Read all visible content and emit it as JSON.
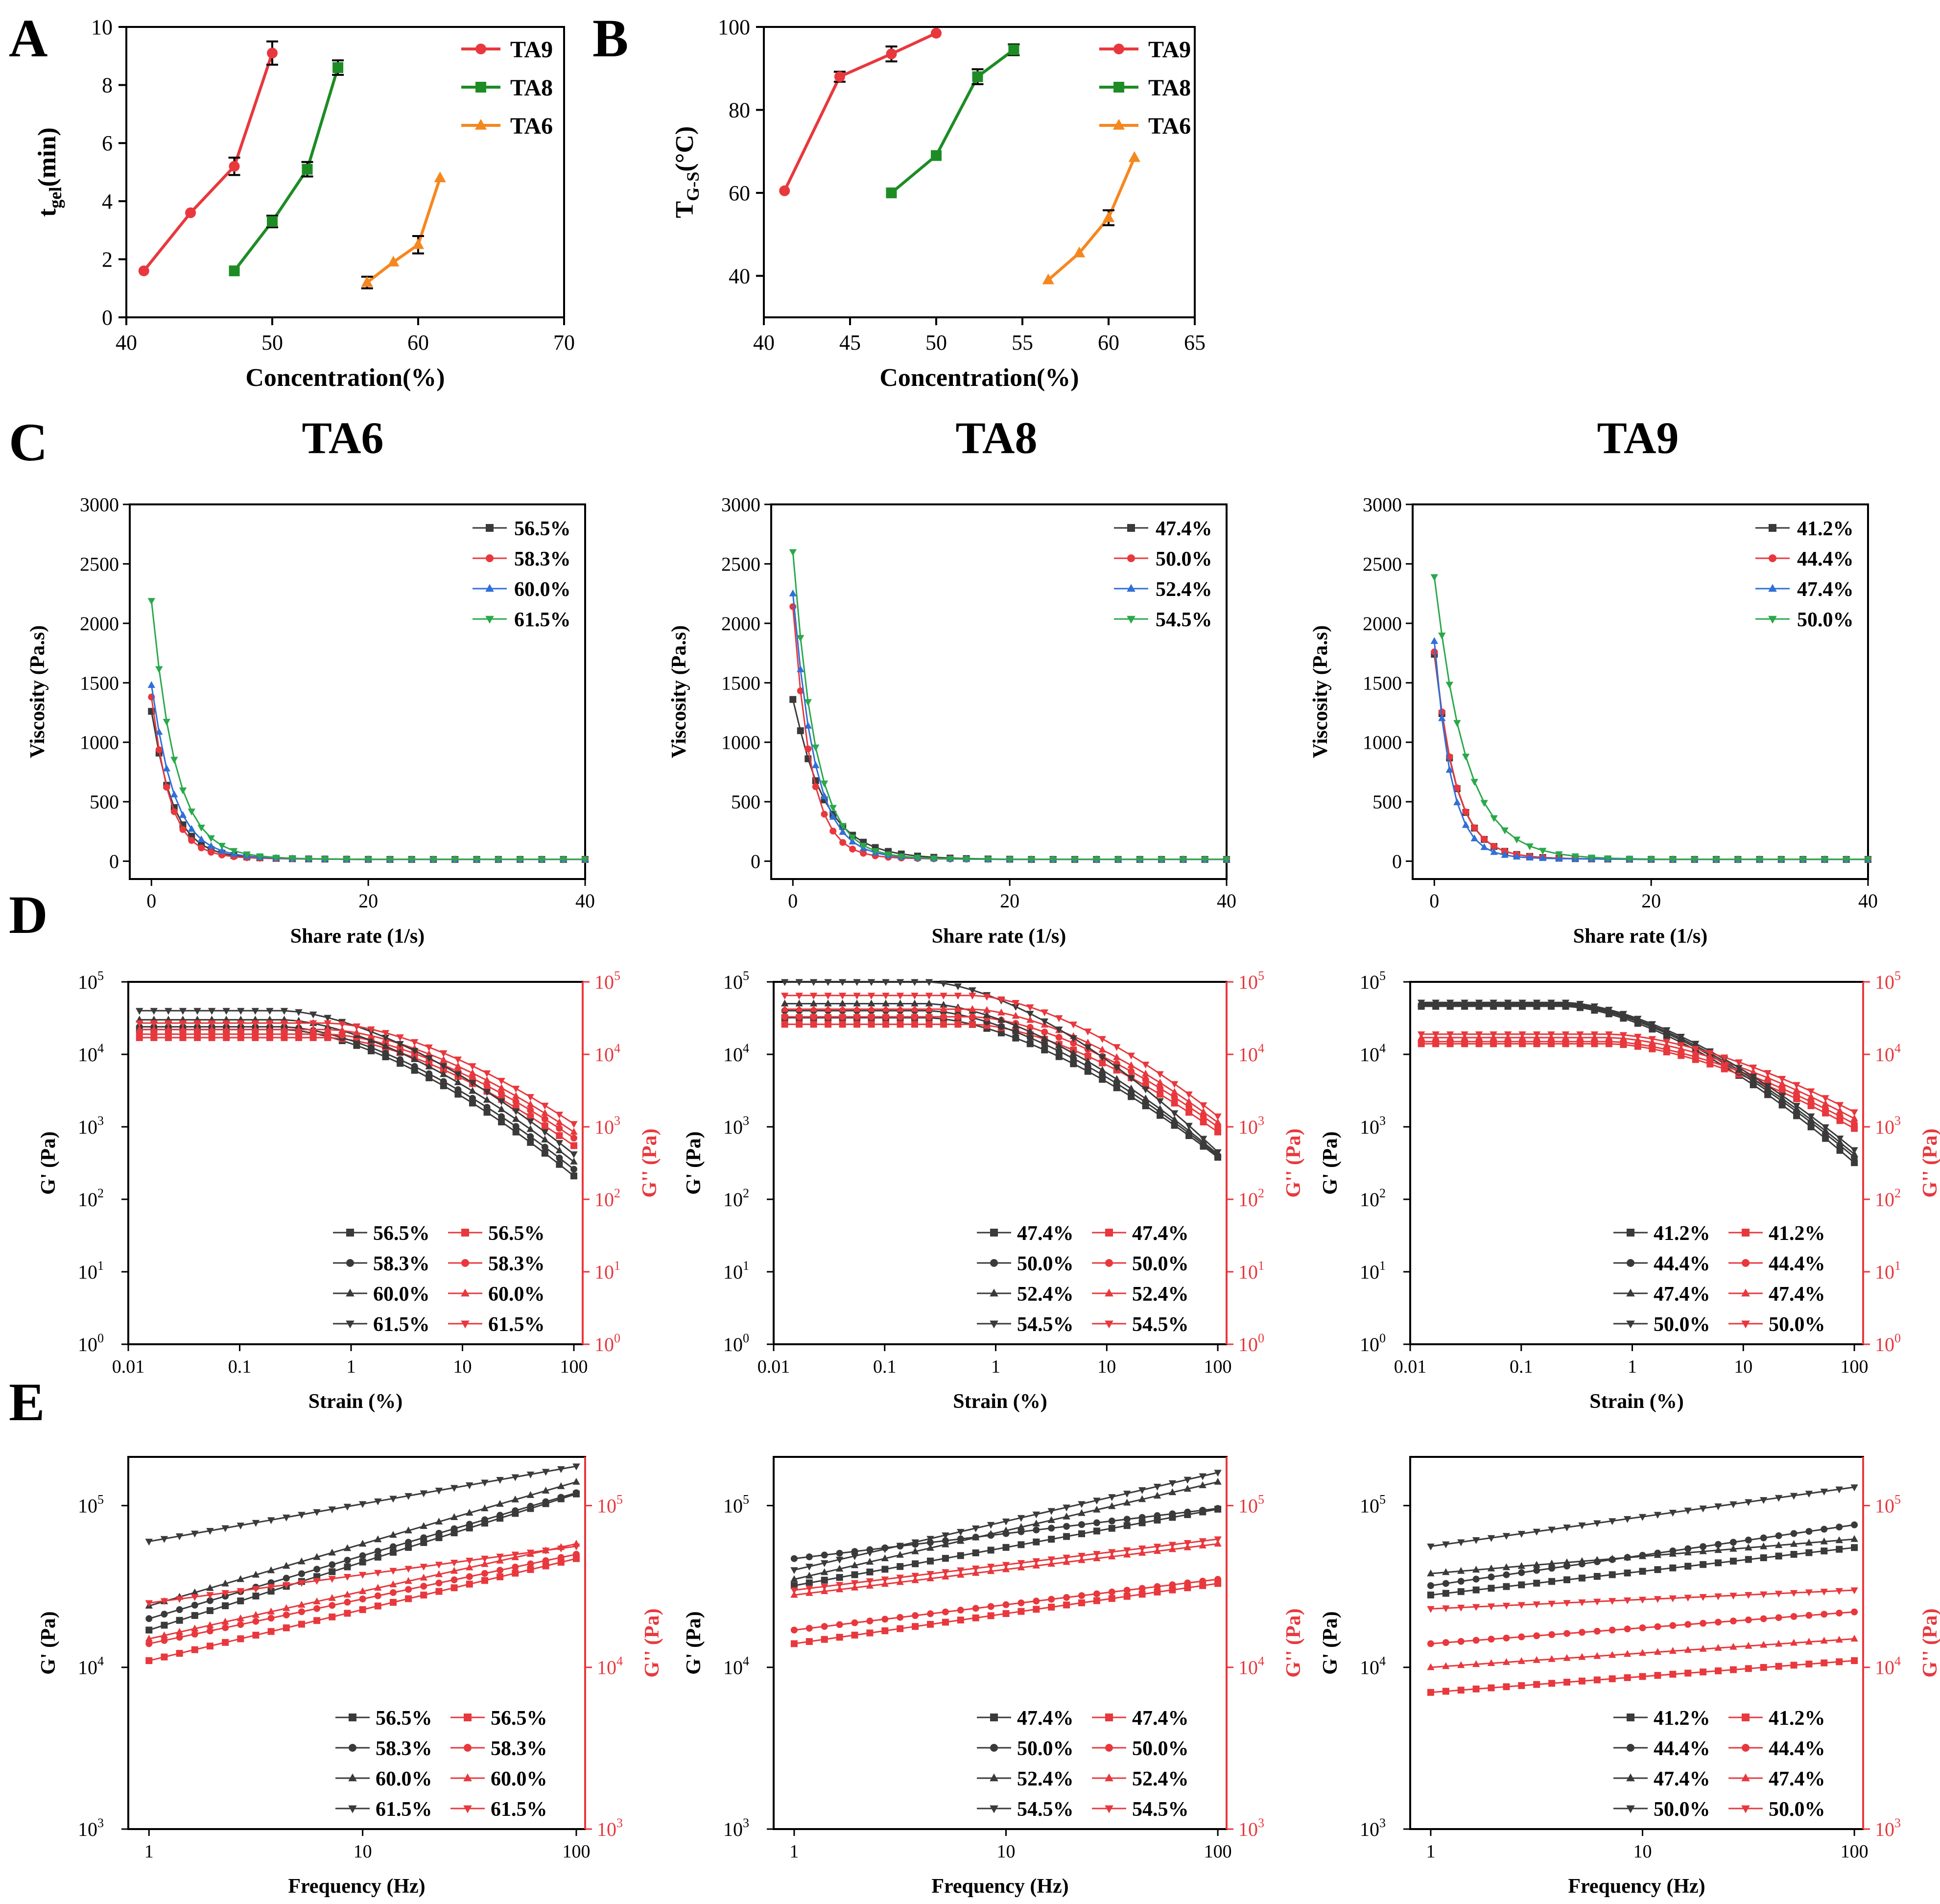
{
  "figure": {
    "panel_labels": [
      "A",
      "B",
      "C",
      "D",
      "E"
    ],
    "column_titles": [
      "TA6",
      "TA8",
      "TA9"
    ]
  },
  "colors": {
    "red": "#e8383d",
    "green": "#1e8c24",
    "orange": "#f5871f",
    "black": "#3a3a3a",
    "blue": "#2f6fd8",
    "teal_green": "#2aa84a",
    "red_axis": "#e8383d"
  },
  "chart_data": [
    {
      "id": "A",
      "type": "line",
      "xlabel": "Concentration(%)",
      "ylabel": "t_gel(min)",
      "ylabel_main": "t",
      "ylabel_sub": "gel",
      "ylabel_tail": "(min)",
      "xlim": [
        40,
        70
      ],
      "ylim": [
        0,
        10
      ],
      "xticks": [
        40,
        50,
        60,
        70
      ],
      "yticks": [
        0,
        2,
        4,
        6,
        8,
        10
      ],
      "series": [
        {
          "name": "TA9",
          "marker": "circle",
          "color": "#e8383d",
          "x": [
            41.2,
            44.4,
            47.4,
            50.0
          ],
          "y": [
            1.6,
            3.6,
            5.2,
            9.1
          ],
          "err": [
            0,
            0,
            0.3,
            0.4
          ]
        },
        {
          "name": "TA8",
          "marker": "square",
          "color": "#1e8c24",
          "x": [
            47.4,
            50.0,
            52.4,
            54.5
          ],
          "y": [
            1.6,
            3.3,
            5.1,
            8.6
          ],
          "err": [
            0,
            0.2,
            0.25,
            0.25
          ]
        },
        {
          "name": "TA6",
          "marker": "triangle",
          "color": "#f5871f",
          "x": [
            56.5,
            58.3,
            60.0,
            61.5
          ],
          "y": [
            1.2,
            1.9,
            2.5,
            4.8
          ],
          "err": [
            0.2,
            0,
            0.3,
            0
          ]
        }
      ]
    },
    {
      "id": "B",
      "type": "line",
      "xlabel": "Concentration(%)",
      "ylabel": "T_G-S(°C)",
      "ylabel_main": "T",
      "ylabel_sub": "G-S",
      "ylabel_tail": "(°C)",
      "xlim": [
        40,
        65
      ],
      "ylim": [
        30,
        100
      ],
      "xticks": [
        40,
        45,
        50,
        55,
        60,
        65
      ],
      "yticks": [
        40,
        60,
        80,
        100
      ],
      "series": [
        {
          "name": "TA9",
          "marker": "circle",
          "color": "#e8383d",
          "x": [
            41.2,
            44.4,
            47.4,
            50.0
          ],
          "y": [
            60.5,
            88.0,
            93.5,
            98.5
          ],
          "err": [
            0,
            1.2,
            1.8,
            0
          ]
        },
        {
          "name": "TA8",
          "marker": "square",
          "color": "#1e8c24",
          "x": [
            47.4,
            50.0,
            52.4,
            54.5
          ],
          "y": [
            60.0,
            69.0,
            88.0,
            94.5
          ],
          "err": [
            0,
            0,
            1.8,
            1.3
          ]
        },
        {
          "name": "TA6",
          "marker": "triangle",
          "color": "#f5871f",
          "x": [
            56.5,
            58.3,
            60.0,
            61.5
          ],
          "y": [
            39.0,
            45.5,
            54.0,
            68.5
          ],
          "err": [
            0,
            0,
            1.8,
            0
          ]
        }
      ]
    },
    {
      "id": "C1",
      "type": "line",
      "title": "TA6",
      "xlabel": "Share rate (1/s)",
      "ylabel": "Viscosity (Pa.s)",
      "xlim": [
        -2,
        40
      ],
      "ylim": [
        -150,
        3000
      ],
      "xticks": [
        0,
        20,
        40
      ],
      "yticks": [
        0,
        500,
        1000,
        1500,
        2000,
        2500,
        3000
      ],
      "legend": [
        "56.5%",
        "58.3%",
        "60.0%",
        "61.5%"
      ],
      "peaks": [
        1260,
        1380,
        1480,
        2190
      ],
      "k": [
        0.62,
        0.72,
        0.58,
        0.55
      ]
    },
    {
      "id": "C2",
      "type": "line",
      "title": "TA8",
      "xlabel": "Share  rate (1/s)",
      "ylabel": "Viscosity (Pa.s)",
      "xlim": [
        -2,
        40
      ],
      "ylim": [
        -150,
        3000
      ],
      "xticks": [
        0,
        20,
        40
      ],
      "yticks": [
        0,
        500,
        1000,
        1500,
        2000,
        2500,
        3000
      ],
      "legend": [
        "47.4%",
        "50.0%",
        "52.4%",
        "54.5%"
      ],
      "peaks": [
        1360,
        2140,
        2250,
        2600
      ],
      "k": [
        0.42,
        0.72,
        0.6,
        0.58
      ]
    },
    {
      "id": "C3",
      "type": "line",
      "title": "TA9",
      "xlabel": "Share  rate (1/s)",
      "ylabel": "Viscosity (Pa.s)",
      "xlim": [
        -2,
        40
      ],
      "ylim": [
        -150,
        3000
      ],
      "xticks": [
        0,
        20,
        40
      ],
      "yticks": [
        0,
        500,
        1000,
        1500,
        2000,
        2500,
        3000
      ],
      "legend": [
        "41.2%",
        "44.4%",
        "47.4%",
        "50.0%"
      ],
      "peaks": [
        1740,
        1760,
        1850,
        2390
      ],
      "k": [
        0.62,
        0.62,
        0.78,
        0.42
      ]
    },
    {
      "id": "D1",
      "type": "line",
      "scale": "log",
      "xlabel": "Strain (%)",
      "ylabel": "G' (Pa)",
      "ylabel2": "G'' (Pa)",
      "xlim": [
        0.01,
        120
      ],
      "ylim": [
        1,
        100000
      ],
      "xticks": [
        "0.01",
        "0.1",
        "1",
        "10",
        "100"
      ],
      "legend": [
        "56.5%",
        "58.3%",
        "60.0%",
        "61.5%"
      ],
      "gp_plateau": [
        22000,
        24000,
        30000,
        40000
      ],
      "gp_end": [
        210,
        260,
        330,
        420
      ],
      "gpp_plateau": [
        17000,
        19000,
        22000,
        27000
      ],
      "gpp_end": [
        550,
        700,
        850,
        1100
      ]
    },
    {
      "id": "D2",
      "type": "line",
      "scale": "log",
      "xlabel": "Strain (%)",
      "ylabel": "G' (Pa)",
      "ylabel2": "G'' (Pa)",
      "xlim": [
        0.01,
        120
      ],
      "ylim": [
        1,
        100000
      ],
      "xticks": [
        "0.01",
        "0.1",
        "1",
        "10",
        "100"
      ],
      "legend": [
        "47.4%",
        "50.0%",
        "52.4%",
        "54.5%"
      ],
      "gp_plateau": [
        32000,
        40000,
        50000,
        100000
      ],
      "gp_end": [
        380,
        400,
        420,
        450
      ],
      "gpp_plateau": [
        26000,
        33000,
        42000,
        65000
      ],
      "gpp_end": [
        850,
        1000,
        1150,
        1400
      ]
    },
    {
      "id": "D3",
      "type": "line",
      "scale": "log",
      "xlabel": "Strain (%)",
      "ylabel": "G' (Pa)",
      "ylabel2": "G'' (Pa)",
      "xlim": [
        0.01,
        120
      ],
      "ylim": [
        1,
        100000
      ],
      "xticks": [
        "0.01",
        "0.1",
        "1",
        "10",
        "100"
      ],
      "legend": [
        "41.2%",
        "44.4%",
        "47.4%",
        "50.0%"
      ],
      "gp_plateau": [
        46000,
        48000,
        50000,
        52000
      ],
      "gp_end": [
        320,
        380,
        420,
        480
      ],
      "gpp_plateau": [
        14000,
        15000,
        17000,
        19000
      ],
      "gpp_end": [
        950,
        1100,
        1300,
        1600
      ]
    },
    {
      "id": "E1",
      "type": "line",
      "scale": "log",
      "xlabel": "Frequency (Hz)",
      "ylabel": "G' (Pa)",
      "ylabel2": "G'' (Pa)",
      "xlim": [
        0.8,
        110
      ],
      "ylim": [
        1000,
        200000
      ],
      "xticks": [
        "1",
        "10",
        "100"
      ],
      "legend": [
        "56.5%",
        "58.3%",
        "60.0%",
        "61.5%"
      ],
      "gp_start": [
        17000,
        20000,
        24000,
        60000
      ],
      "gp_end": [
        118000,
        120000,
        140000,
        175000
      ],
      "gpp_start": [
        11000,
        14000,
        15000,
        25000
      ],
      "gpp_end": [
        47000,
        50000,
        58000,
        56000
      ]
    },
    {
      "id": "E2",
      "type": "line",
      "scale": "log",
      "xlabel": "Frequency (Hz)",
      "ylabel": "G' (Pa)",
      "ylabel2": "G'' (Pa)",
      "xlim": [
        0.8,
        110
      ],
      "ylim": [
        1000,
        200000
      ],
      "xticks": [
        "1",
        "10",
        "100"
      ],
      "legend": [
        "47.4%",
        "50.0%",
        "52.4%",
        "54.5%"
      ],
      "gp_start": [
        32000,
        47000,
        35000,
        40000
      ],
      "gp_end": [
        95000,
        96000,
        140000,
        160000
      ],
      "gpp_start": [
        14000,
        17000,
        28000,
        30000
      ],
      "gpp_end": [
        33000,
        35000,
        58000,
        62000
      ]
    },
    {
      "id": "E3",
      "type": "line",
      "scale": "log",
      "xlabel": "Frequency (Hz)",
      "ylabel": "G' (Pa)",
      "ylabel2": "G'' (Pa)",
      "xlim": [
        0.8,
        110
      ],
      "ylim": [
        1000,
        200000
      ],
      "xticks": [
        "1",
        "10",
        "100"
      ],
      "legend": [
        "41.2%",
        "44.4%",
        "47.4%",
        "50.0%"
      ],
      "gp_start": [
        28000,
        32000,
        38000,
        56000
      ],
      "gp_end": [
        55000,
        76000,
        62000,
        130000
      ],
      "gpp_start": [
        7000,
        14000,
        10000,
        23000
      ],
      "gpp_end": [
        11000,
        22000,
        15000,
        30000
      ]
    }
  ]
}
